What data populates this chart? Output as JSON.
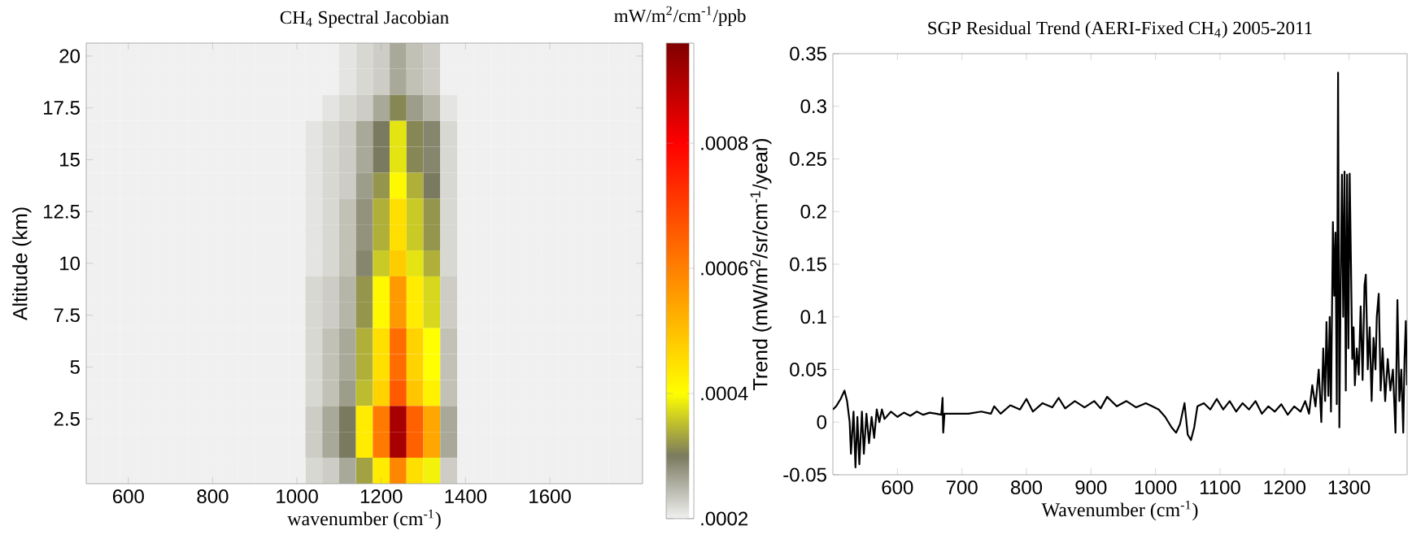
{
  "chart_data": [
    {
      "type": "heatmap",
      "title": "CH$_{4}$ Spectral Jacobian",
      "xlabel": "wavenumber (cm$^{-1}$)",
      "ylabel": "Altitude (km)",
      "clabel": "mW/m$^{2}$/cm$^{-1}$/ppb",
      "categories": [
        null,
        null,
        "600",
        null,
        null,
        null,
        null,
        "800",
        null,
        null,
        null,
        null,
        "1000",
        null,
        null,
        null,
        null,
        "1200",
        null,
        null,
        null,
        null,
        "1400",
        null,
        null,
        null,
        null,
        "1600",
        null,
        null,
        null,
        null,
        null
      ],
      "y_categories": [
        "20",
        null,
        "17.5",
        null,
        "15",
        null,
        "12.5",
        null,
        "10",
        null,
        "7.5",
        null,
        "5",
        null,
        "2.5",
        null,
        null
      ],
      "cells": [
        [
          0.0002,
          0.0002,
          0.0002,
          0.0002,
          0.0002,
          0.0002,
          0.0002,
          0.0002,
          0.0002,
          0.0002,
          0.0002,
          0.0002,
          0.0002,
          0.0002,
          0.0002,
          0.00021,
          0.00022,
          0.00023,
          0.00026,
          0.00024,
          0.00023,
          0.0002,
          0.0002,
          0.0002,
          0.0002,
          0.0002,
          0.0002,
          0.0002,
          0.0002,
          0.0002,
          0.0002,
          0.0002,
          0.0002
        ],
        [
          0.0002,
          0.0002,
          0.0002,
          0.0002,
          0.0002,
          0.0002,
          0.0002,
          0.0002,
          0.0002,
          0.0002,
          0.0002,
          0.0002,
          0.0002,
          0.0002,
          0.0002,
          0.00021,
          0.00022,
          0.00023,
          0.00026,
          0.00024,
          0.00023,
          0.0002,
          0.0002,
          0.0002,
          0.0002,
          0.0002,
          0.0002,
          0.0002,
          0.0002,
          0.0002,
          0.0002,
          0.0002,
          0.0002
        ],
        [
          0.0002,
          0.0002,
          0.0002,
          0.0002,
          0.0002,
          0.0002,
          0.0002,
          0.0002,
          0.0002,
          0.0002,
          0.0002,
          0.0002,
          0.0002,
          0.0002,
          0.00021,
          0.00022,
          0.00023,
          0.00026,
          0.00031,
          0.00027,
          0.00025,
          0.00021,
          0.0002,
          0.0002,
          0.0002,
          0.0002,
          0.0002,
          0.0002,
          0.0002,
          0.0002,
          0.0002,
          0.0002,
          0.0002
        ],
        [
          0.0002,
          0.0002,
          0.0002,
          0.0002,
          0.0002,
          0.0002,
          0.0002,
          0.0002,
          0.0002,
          0.0002,
          0.0002,
          0.0002,
          0.0002,
          0.00021,
          0.00022,
          0.00023,
          0.00026,
          0.0003,
          0.00038,
          0.00031,
          0.00029,
          0.00022,
          0.0002,
          0.0002,
          0.0002,
          0.0002,
          0.0002,
          0.0002,
          0.0002,
          0.0002,
          0.0002,
          0.0002,
          0.0002
        ],
        [
          0.0002,
          0.0002,
          0.0002,
          0.0002,
          0.0002,
          0.0002,
          0.0002,
          0.0002,
          0.0002,
          0.0002,
          0.0002,
          0.0002,
          0.0002,
          0.00021,
          0.00022,
          0.00023,
          0.00026,
          0.0003,
          0.00038,
          0.00031,
          0.00029,
          0.00022,
          0.0002,
          0.0002,
          0.0002,
          0.0002,
          0.0002,
          0.0002,
          0.0002,
          0.0002,
          0.0002,
          0.0002,
          0.0002
        ],
        [
          0.0002,
          0.0002,
          0.0002,
          0.0002,
          0.0002,
          0.0002,
          0.0002,
          0.0002,
          0.0002,
          0.0002,
          0.0002,
          0.0002,
          0.0002,
          0.00021,
          0.00022,
          0.00023,
          0.00027,
          0.00032,
          0.00041,
          0.00034,
          0.0003,
          0.00022,
          0.0002,
          0.0002,
          0.0002,
          0.0002,
          0.0002,
          0.0002,
          0.0002,
          0.0002,
          0.0002,
          0.0002,
          0.0002
        ],
        [
          0.0002,
          0.0002,
          0.0002,
          0.0002,
          0.0002,
          0.0002,
          0.0002,
          0.0002,
          0.0002,
          0.0002,
          0.0002,
          0.0002,
          0.0002,
          0.00021,
          0.00022,
          0.00024,
          0.00028,
          0.00034,
          0.00045,
          0.00036,
          0.00032,
          0.00022,
          0.0002,
          0.0002,
          0.0002,
          0.0002,
          0.0002,
          0.0002,
          0.0002,
          0.0002,
          0.0002,
          0.0002,
          0.0002
        ],
        [
          0.0002,
          0.0002,
          0.0002,
          0.0002,
          0.0002,
          0.0002,
          0.0002,
          0.0002,
          0.0002,
          0.0002,
          0.0002,
          0.0002,
          0.0002,
          0.00021,
          0.00022,
          0.00024,
          0.00028,
          0.00034,
          0.00045,
          0.00036,
          0.00032,
          0.00022,
          0.0002,
          0.0002,
          0.0002,
          0.0002,
          0.0002,
          0.0002,
          0.0002,
          0.0002,
          0.0002,
          0.0002,
          0.0002
        ],
        [
          0.0002,
          0.0002,
          0.0002,
          0.0002,
          0.0002,
          0.0002,
          0.0002,
          0.0002,
          0.0002,
          0.0002,
          0.0002,
          0.0002,
          0.0002,
          0.00021,
          0.00022,
          0.00024,
          0.00029,
          0.00036,
          0.00048,
          0.00038,
          0.00034,
          0.00022,
          0.0002,
          0.0002,
          0.0002,
          0.0002,
          0.0002,
          0.0002,
          0.0002,
          0.0002,
          0.0002,
          0.0002,
          0.0002
        ],
        [
          0.0002,
          0.0002,
          0.0002,
          0.0002,
          0.0002,
          0.0002,
          0.0002,
          0.0002,
          0.0002,
          0.0002,
          0.0002,
          0.0002,
          0.0002,
          0.00022,
          0.00023,
          0.00025,
          0.00032,
          0.00041,
          0.00056,
          0.00043,
          0.00037,
          0.00023,
          0.0002,
          0.0002,
          0.0002,
          0.0002,
          0.0002,
          0.0002,
          0.0002,
          0.0002,
          0.0002,
          0.0002,
          0.0002
        ],
        [
          0.0002,
          0.0002,
          0.0002,
          0.0002,
          0.0002,
          0.0002,
          0.0002,
          0.0002,
          0.0002,
          0.0002,
          0.0002,
          0.0002,
          0.0002,
          0.00022,
          0.00023,
          0.00025,
          0.00032,
          0.00041,
          0.00056,
          0.00043,
          0.00037,
          0.00023,
          0.0002,
          0.0002,
          0.0002,
          0.0002,
          0.0002,
          0.0002,
          0.0002,
          0.0002,
          0.0002,
          0.0002,
          0.0002
        ],
        [
          0.0002,
          0.0002,
          0.0002,
          0.0002,
          0.0002,
          0.0002,
          0.0002,
          0.0002,
          0.0002,
          0.0002,
          0.0002,
          0.0002,
          0.0002,
          0.00022,
          0.00024,
          0.00026,
          0.00034,
          0.00045,
          0.00063,
          0.00047,
          0.0004,
          0.00024,
          0.0002,
          0.0002,
          0.0002,
          0.0002,
          0.0002,
          0.0002,
          0.0002,
          0.0002,
          0.0002,
          0.0002,
          0.0002
        ],
        [
          0.0002,
          0.0002,
          0.0002,
          0.0002,
          0.0002,
          0.0002,
          0.0002,
          0.0002,
          0.0002,
          0.0002,
          0.0002,
          0.0002,
          0.0002,
          0.00022,
          0.00024,
          0.00026,
          0.00034,
          0.00045,
          0.00063,
          0.00047,
          0.0004,
          0.00024,
          0.0002,
          0.0002,
          0.0002,
          0.0002,
          0.0002,
          0.0002,
          0.0002,
          0.0002,
          0.0002,
          0.0002,
          0.0002
        ],
        [
          0.0002,
          0.0002,
          0.0002,
          0.0002,
          0.0002,
          0.0002,
          0.0002,
          0.0002,
          0.0002,
          0.0002,
          0.0002,
          0.0002,
          0.0002,
          0.00022,
          0.00024,
          0.00027,
          0.00035,
          0.00047,
          0.00066,
          0.00049,
          0.00042,
          0.00024,
          0.0002,
          0.0002,
          0.0002,
          0.0002,
          0.0002,
          0.0002,
          0.0002,
          0.0002,
          0.0002,
          0.0002,
          0.0002
        ],
        [
          0.0002,
          0.0002,
          0.0002,
          0.0002,
          0.0002,
          0.0002,
          0.0002,
          0.0002,
          0.0002,
          0.0002,
          0.0002,
          0.0002,
          0.0002,
          0.00023,
          0.00026,
          0.0003,
          0.00043,
          0.00061,
          0.00091,
          0.00065,
          0.00054,
          0.00026,
          0.0002,
          0.0002,
          0.0002,
          0.0002,
          0.0002,
          0.0002,
          0.0002,
          0.0002,
          0.0002,
          0.0002,
          0.0002
        ],
        [
          0.0002,
          0.0002,
          0.0002,
          0.0002,
          0.0002,
          0.0002,
          0.0002,
          0.0002,
          0.0002,
          0.0002,
          0.0002,
          0.0002,
          0.0002,
          0.00023,
          0.00026,
          0.0003,
          0.00043,
          0.00061,
          0.00091,
          0.00065,
          0.00054,
          0.00026,
          0.0002,
          0.0002,
          0.0002,
          0.0002,
          0.0002,
          0.0002,
          0.0002,
          0.0002,
          0.0002,
          0.0002,
          0.0002
        ],
        [
          0.0002,
          0.0002,
          0.0002,
          0.0002,
          0.0002,
          0.0002,
          0.0002,
          0.0002,
          0.0002,
          0.0002,
          0.0002,
          0.0002,
          0.0002,
          0.00022,
          0.00023,
          0.00026,
          0.00033,
          0.00043,
          0.00059,
          0.00045,
          0.00039,
          0.00023,
          0.0002,
          0.0002,
          0.0002,
          0.0002,
          0.0002,
          0.0002,
          0.0002,
          0.0002,
          0.0002,
          0.0002,
          0.0002
        ]
      ],
      "clim": [
        0.0002,
        0.00096
      ],
      "cticks": [
        {
          "value": 0.0002,
          "label": ".0002"
        },
        {
          "value": 0.0004,
          "label": ".0004"
        },
        {
          "value": 0.0006,
          "label": ".0006"
        },
        {
          "value": 0.0008,
          "label": ".0008"
        }
      ]
    },
    {
      "type": "line",
      "title": "SGP Residual Trend (AERI-Fixed CH$_{4}$) 2005-2011",
      "xlabel": "Wavenumber (cm$^{-1}$)",
      "ylabel": "Trend (mW/m$^{2}$/sr/cm$^{-1}$/year)",
      "x": [
        500,
        505,
        512,
        518,
        522,
        526,
        528,
        532,
        535,
        538,
        541,
        545,
        548,
        552,
        556,
        560,
        564,
        568,
        572,
        576,
        580,
        590,
        600,
        610,
        620,
        630,
        640,
        650,
        660,
        668,
        670,
        671,
        673,
        690,
        710,
        730,
        745,
        750,
        760,
        775,
        790,
        800,
        810,
        825,
        840,
        850,
        860,
        875,
        890,
        905,
        915,
        925,
        940,
        955,
        970,
        985,
        995,
        1005,
        1015,
        1025,
        1032,
        1038,
        1045,
        1050,
        1055,
        1060,
        1065,
        1075,
        1085,
        1095,
        1105,
        1115,
        1125,
        1135,
        1145,
        1155,
        1165,
        1175,
        1185,
        1195,
        1205,
        1215,
        1225,
        1232,
        1238,
        1243,
        1248,
        1253,
        1257,
        1260,
        1263,
        1265,
        1268,
        1270,
        1272,
        1275,
        1277,
        1279,
        1281,
        1283,
        1285,
        1287,
        1289,
        1291,
        1293,
        1295,
        1297,
        1299,
        1301,
        1303,
        1305,
        1307,
        1309,
        1312,
        1315,
        1318,
        1321,
        1324,
        1326,
        1329,
        1332,
        1335,
        1338,
        1341,
        1343,
        1346,
        1349,
        1352,
        1356,
        1360,
        1364,
        1368,
        1372,
        1375,
        1378,
        1381,
        1384,
        1386,
        1388,
        1390
      ],
      "series": [
        {
          "color": "#000000",
          "values": [
            0.012,
            0.015,
            0.022,
            0.03,
            0.02,
            0.0,
            -0.03,
            0.01,
            -0.043,
            0.005,
            -0.04,
            0.01,
            -0.03,
            0.008,
            -0.02,
            0.005,
            -0.015,
            0.012,
            0.0,
            0.012,
            0.003,
            0.01,
            0.005,
            0.009,
            0.006,
            0.01,
            0.007,
            0.009,
            0.008,
            0.007,
            0.023,
            -0.01,
            0.008,
            0.008,
            0.008,
            0.01,
            0.008,
            0.015,
            0.008,
            0.016,
            0.012,
            0.022,
            0.01,
            0.018,
            0.014,
            0.023,
            0.013,
            0.02,
            0.014,
            0.02,
            0.013,
            0.024,
            0.015,
            0.02,
            0.014,
            0.018,
            0.015,
            0.012,
            0.005,
            -0.005,
            -0.01,
            -0.002,
            0.018,
            -0.012,
            -0.017,
            -0.005,
            0.015,
            0.018,
            0.012,
            0.022,
            0.012,
            0.02,
            0.01,
            0.018,
            0.012,
            0.02,
            0.008,
            0.015,
            0.01,
            0.017,
            0.007,
            0.015,
            0.01,
            0.02,
            0.008,
            0.035,
            0.015,
            0.05,
            0.0,
            0.07,
            0.02,
            0.095,
            0.025,
            0.1,
            0.01,
            0.19,
            0.12,
            0.18,
            0.017,
            0.332,
            -0.005,
            0.13,
            0.235,
            0.1,
            0.238,
            0.03,
            0.235,
            0.07,
            0.236,
            0.15,
            0.06,
            0.09,
            0.035,
            0.07,
            0.045,
            0.11,
            0.04,
            0.13,
            0.14,
            0.05,
            0.09,
            0.02,
            0.08,
            0.05,
            0.1,
            0.122,
            0.03,
            0.07,
            0.02,
            0.06,
            0.03,
            0.05,
            -0.01,
            0.116,
            0.02,
            0.05,
            -0.01,
            0.06,
            0.096,
            0.035
          ]
        }
      ],
      "xlim": [
        500,
        1390
      ],
      "xticks": [
        600,
        700,
        800,
        900,
        1000,
        1100,
        1200,
        1300
      ],
      "ylim": [
        -0.05,
        0.35
      ],
      "yticks": [
        -0.05,
        0,
        0.05,
        0.1,
        0.15,
        0.2,
        0.25,
        0.3,
        0.35
      ]
    }
  ]
}
